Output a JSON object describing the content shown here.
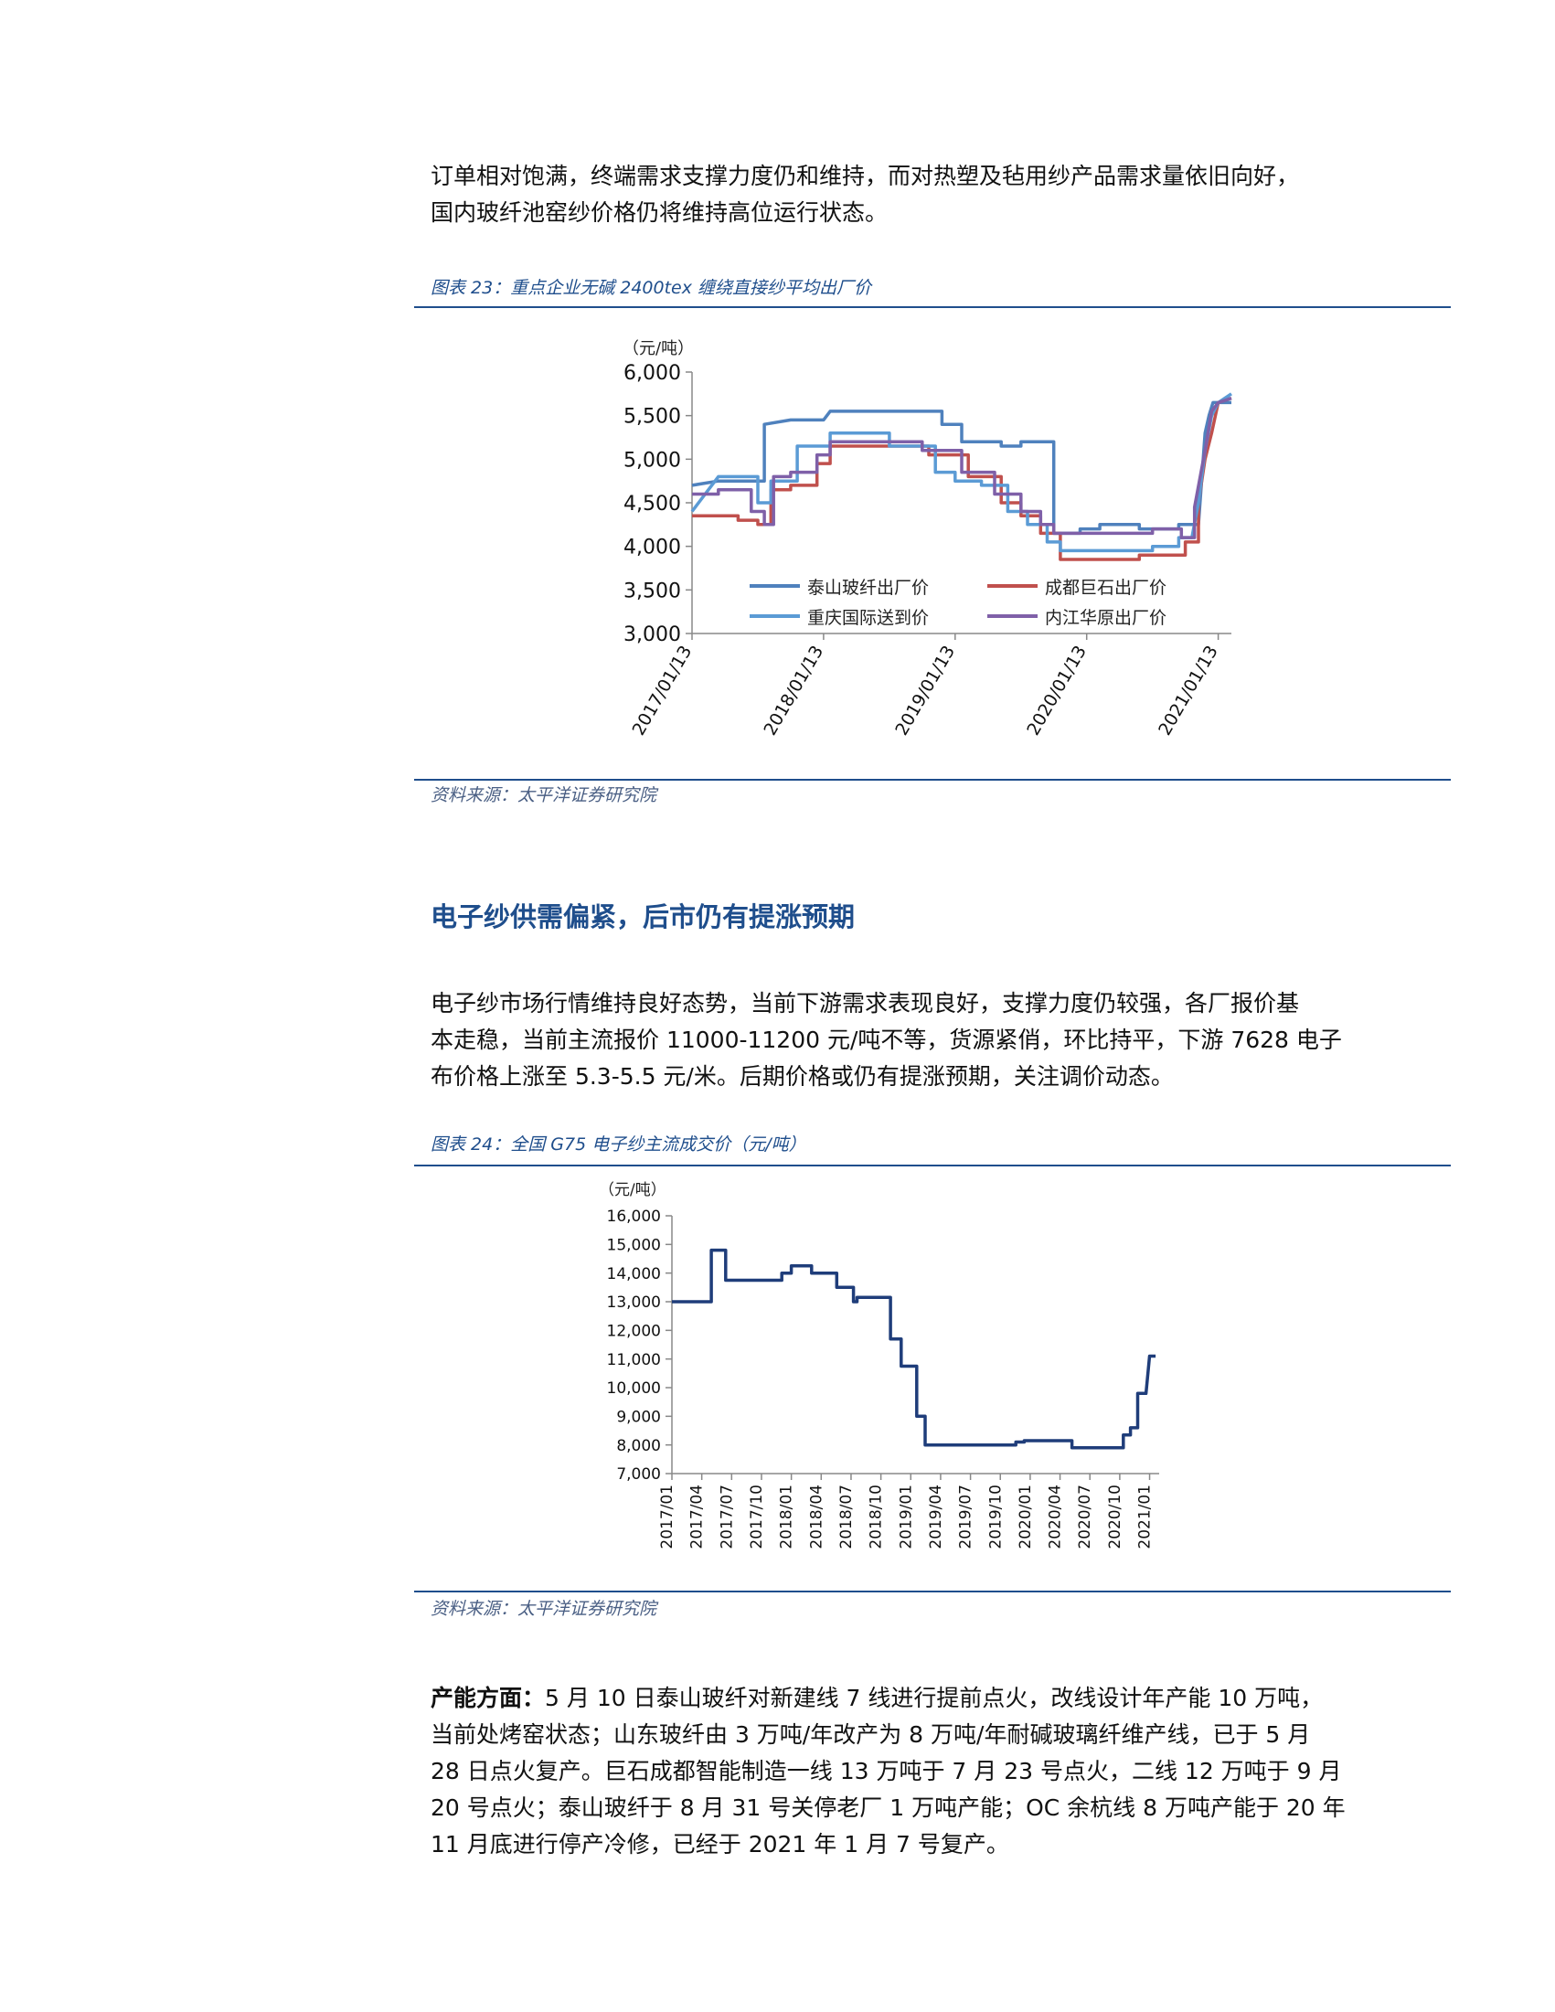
{
  "intro": {
    "lines": [
      "订单相对饱满，终端需求支撑力度仍和维持，而对热塑及毡用纱产品需求量依旧向好，",
      "国内玻纤池窑纱价格仍将维持高位运行状态。"
    ]
  },
  "figure1": {
    "caption": "图表 23：重点企业无碱 2400tex 缠绕直接纱平均出厂价",
    "source": "资料来源：太平洋证券研究院"
  },
  "section2": {
    "heading": "电子纱供需偏紧，后市仍有提涨预期",
    "lines": [
      "电子纱市场行情维持良好态势，当前下游需求表现良好，支撑力度仍较强，各厂报价基",
      "本走稳，当前主流报价 11000-11200 元/吨不等，货源紧俏，环比持平，下游 7628 电子",
      "布价格上涨至 5.3-5.5 元/米。后期价格或仍有提涨预期，关注调价动态。"
    ]
  },
  "figure2": {
    "caption": "图表 24：全国 G75 电子纱主流成交价（元/吨）",
    "source": "资料来源：太平洋证券研究院"
  },
  "section3": {
    "lead": "产能方面：",
    "first_line": "5 月 10 日泰山玻纤对新建线 7 线进行提前点火，改线设计年产能 10 万吨，",
    "lines": [
      "当前处烤窑状态；山东玻纤由 3 万吨/年改产为 8 万吨/年耐碱玻璃纤维产线，已于 5 月",
      "28 日点火复产。巨石成都智能制造一线 13 万吨于 7 月 23 号点火，二线 12 万吨于 9 月",
      "20 号点火；泰山玻纤于 8 月 31 号关停老厂 1 万吨产能；OC 余杭线 8 万吨产能于 20 年",
      "11 月底进行停产冷修，已经于 2021 年 1 月 7 号复产。"
    ]
  },
  "chart_data": [
    {
      "type": "line",
      "unit_label": "（元/吨）",
      "ylim": [
        3000,
        6000
      ],
      "yticks": [
        "3,000",
        "3,500",
        "4,000",
        "4,500",
        "5,000",
        "5,500",
        "6,000"
      ],
      "xlim": [
        2017.0,
        2021.1
      ],
      "xticks": [
        {
          "t": 2017.0,
          "label": "2017/01/13"
        },
        {
          "t": 2018.0,
          "label": "2018/01/13"
        },
        {
          "t": 2019.0,
          "label": "2019/01/13"
        },
        {
          "t": 2020.0,
          "label": "2020/01/13"
        },
        {
          "t": 2021.0,
          "label": "2021/01/13"
        }
      ],
      "legend": "inside-bottom",
      "series": [
        {
          "name": "泰山玻纤出厂价",
          "color": "#4f81bd",
          "points": [
            [
              2017.0,
              4700
            ],
            [
              2017.2,
              4750
            ],
            [
              2017.55,
              4750
            ],
            [
              2017.55,
              5400
            ],
            [
              2017.75,
              5450
            ],
            [
              2018.0,
              5450
            ],
            [
              2018.05,
              5550
            ],
            [
              2018.9,
              5550
            ],
            [
              2018.9,
              5400
            ],
            [
              2019.05,
              5400
            ],
            [
              2019.05,
              5200
            ],
            [
              2019.35,
              5200
            ],
            [
              2019.35,
              5150
            ],
            [
              2019.5,
              5150
            ],
            [
              2019.5,
              5200
            ],
            [
              2019.75,
              5200
            ],
            [
              2019.75,
              4150
            ],
            [
              2019.95,
              4150
            ],
            [
              2019.95,
              4200
            ],
            [
              2020.1,
              4200
            ],
            [
              2020.1,
              4250
            ],
            [
              2020.4,
              4250
            ],
            [
              2020.4,
              4200
            ],
            [
              2020.7,
              4200
            ],
            [
              2020.7,
              4250
            ],
            [
              2020.85,
              4250
            ],
            [
              2020.9,
              5300
            ],
            [
              2020.93,
              5500
            ],
            [
              2020.96,
              5650
            ],
            [
              2021.1,
              5650
            ]
          ]
        },
        {
          "name": "成都巨石出厂价",
          "color": "#c0504d",
          "points": [
            [
              2017.0,
              4350
            ],
            [
              2017.35,
              4350
            ],
            [
              2017.35,
              4300
            ],
            [
              2017.5,
              4300
            ],
            [
              2017.5,
              4250
            ],
            [
              2017.6,
              4250
            ],
            [
              2017.6,
              4650
            ],
            [
              2017.75,
              4650
            ],
            [
              2017.75,
              4700
            ],
            [
              2017.95,
              4700
            ],
            [
              2017.95,
              4950
            ],
            [
              2018.05,
              4950
            ],
            [
              2018.05,
              5150
            ],
            [
              2018.8,
              5150
            ],
            [
              2018.8,
              5050
            ],
            [
              2019.1,
              5050
            ],
            [
              2019.1,
              4800
            ],
            [
              2019.35,
              4800
            ],
            [
              2019.35,
              4500
            ],
            [
              2019.5,
              4500
            ],
            [
              2019.5,
              4350
            ],
            [
              2019.65,
              4350
            ],
            [
              2019.65,
              4150
            ],
            [
              2019.8,
              4150
            ],
            [
              2019.8,
              3850
            ],
            [
              2020.4,
              3850
            ],
            [
              2020.4,
              3900
            ],
            [
              2020.75,
              3900
            ],
            [
              2020.75,
              4050
            ],
            [
              2020.85,
              4050
            ],
            [
              2020.85,
              4500
            ],
            [
              2020.9,
              5000
            ],
            [
              2020.95,
              5300
            ],
            [
              2021.0,
              5650
            ],
            [
              2021.1,
              5700
            ]
          ]
        },
        {
          "name": "重庆国际送到价",
          "color": "#5b9bd5",
          "points": [
            [
              2017.0,
              4400
            ],
            [
              2017.15,
              4700
            ],
            [
              2017.2,
              4800
            ],
            [
              2017.5,
              4800
            ],
            [
              2017.5,
              4500
            ],
            [
              2017.6,
              4500
            ],
            [
              2017.6,
              4750
            ],
            [
              2017.8,
              4750
            ],
            [
              2017.8,
              5150
            ],
            [
              2018.05,
              5150
            ],
            [
              2018.05,
              5300
            ],
            [
              2018.5,
              5300
            ],
            [
              2018.5,
              5150
            ],
            [
              2018.85,
              5150
            ],
            [
              2018.85,
              4850
            ],
            [
              2019.0,
              4850
            ],
            [
              2019.0,
              4750
            ],
            [
              2019.2,
              4750
            ],
            [
              2019.2,
              4700
            ],
            [
              2019.4,
              4700
            ],
            [
              2019.4,
              4400
            ],
            [
              2019.55,
              4400
            ],
            [
              2019.55,
              4250
            ],
            [
              2019.7,
              4250
            ],
            [
              2019.7,
              4050
            ],
            [
              2019.8,
              4050
            ],
            [
              2019.8,
              3950
            ],
            [
              2020.5,
              3950
            ],
            [
              2020.5,
              4000
            ],
            [
              2020.7,
              4000
            ],
            [
              2020.7,
              4100
            ],
            [
              2020.8,
              4100
            ],
            [
              2020.85,
              4500
            ],
            [
              2020.9,
              5100
            ],
            [
              2020.95,
              5500
            ],
            [
              2021.0,
              5650
            ],
            [
              2021.1,
              5750
            ]
          ]
        },
        {
          "name": "内江华原出厂价",
          "color": "#7f60a8",
          "points": [
            [
              2017.0,
              4600
            ],
            [
              2017.2,
              4600
            ],
            [
              2017.2,
              4650
            ],
            [
              2017.45,
              4650
            ],
            [
              2017.45,
              4400
            ],
            [
              2017.55,
              4400
            ],
            [
              2017.55,
              4250
            ],
            [
              2017.62,
              4250
            ],
            [
              2017.62,
              4800
            ],
            [
              2017.75,
              4800
            ],
            [
              2017.75,
              4850
            ],
            [
              2017.95,
              4850
            ],
            [
              2017.95,
              5050
            ],
            [
              2018.05,
              5050
            ],
            [
              2018.05,
              5200
            ],
            [
              2018.75,
              5200
            ],
            [
              2018.75,
              5100
            ],
            [
              2019.05,
              5100
            ],
            [
              2019.05,
              4850
            ],
            [
              2019.3,
              4850
            ],
            [
              2019.3,
              4600
            ],
            [
              2019.5,
              4600
            ],
            [
              2019.5,
              4400
            ],
            [
              2019.65,
              4400
            ],
            [
              2019.65,
              4250
            ],
            [
              2019.75,
              4250
            ],
            [
              2019.75,
              4150
            ],
            [
              2020.5,
              4150
            ],
            [
              2020.5,
              4200
            ],
            [
              2020.72,
              4200
            ],
            [
              2020.72,
              4100
            ],
            [
              2020.82,
              4100
            ],
            [
              2020.82,
              4450
            ],
            [
              2020.9,
              5100
            ],
            [
              2020.95,
              5550
            ],
            [
              2021.0,
              5650
            ],
            [
              2021.1,
              5700
            ]
          ]
        }
      ]
    },
    {
      "type": "line",
      "unit_label": "（元/吨）",
      "ylim": [
        7000,
        16000
      ],
      "yticks": [
        "7,000",
        "8,000",
        "9,000",
        "10,000",
        "11,000",
        "12,000",
        "13,000",
        "14,000",
        "15,000",
        "16,000"
      ],
      "xlim": [
        2017.0,
        2021.08
      ],
      "xticks": [
        {
          "t": 2017.0,
          "label": "2017/01"
        },
        {
          "t": 2017.25,
          "label": "2017/04"
        },
        {
          "t": 2017.5,
          "label": "2017/07"
        },
        {
          "t": 2017.75,
          "label": "2017/10"
        },
        {
          "t": 2018.0,
          "label": "2018/01"
        },
        {
          "t": 2018.25,
          "label": "2018/04"
        },
        {
          "t": 2018.5,
          "label": "2018/07"
        },
        {
          "t": 2018.75,
          "label": "2018/10"
        },
        {
          "t": 2019.0,
          "label": "2019/01"
        },
        {
          "t": 2019.25,
          "label": "2019/04"
        },
        {
          "t": 2019.5,
          "label": "2019/07"
        },
        {
          "t": 2019.75,
          "label": "2019/10"
        },
        {
          "t": 2020.0,
          "label": "2020/01"
        },
        {
          "t": 2020.25,
          "label": "2020/04"
        },
        {
          "t": 2020.5,
          "label": "2020/07"
        },
        {
          "t": 2020.75,
          "label": "2020/10"
        },
        {
          "t": 2021.0,
          "label": "2021/01"
        }
      ],
      "series": [
        {
          "name": "",
          "color": "#1f3d7a",
          "points": [
            [
              2017.0,
              13000
            ],
            [
              2017.33,
              13000
            ],
            [
              2017.33,
              14800
            ],
            [
              2017.45,
              14800
            ],
            [
              2017.45,
              13750
            ],
            [
              2017.92,
              13750
            ],
            [
              2017.92,
              14000
            ],
            [
              2018.0,
              14000
            ],
            [
              2018.0,
              14250
            ],
            [
              2018.17,
              14250
            ],
            [
              2018.17,
              14000
            ],
            [
              2018.38,
              14000
            ],
            [
              2018.38,
              13500
            ],
            [
              2018.52,
              13500
            ],
            [
              2018.52,
              13000
            ],
            [
              2018.55,
              13000
            ],
            [
              2018.55,
              13150
            ],
            [
              2018.83,
              13150
            ],
            [
              2018.83,
              11700
            ],
            [
              2018.92,
              11700
            ],
            [
              2018.92,
              10750
            ],
            [
              2019.05,
              10750
            ],
            [
              2019.05,
              9000
            ],
            [
              2019.12,
              9000
            ],
            [
              2019.12,
              8000
            ],
            [
              2019.88,
              8000
            ],
            [
              2019.88,
              8100
            ],
            [
              2019.95,
              8100
            ],
            [
              2019.95,
              8150
            ],
            [
              2020.35,
              8150
            ],
            [
              2020.35,
              7900
            ],
            [
              2020.78,
              7900
            ],
            [
              2020.78,
              8350
            ],
            [
              2020.84,
              8350
            ],
            [
              2020.84,
              8600
            ],
            [
              2020.9,
              8600
            ],
            [
              2020.9,
              9800
            ],
            [
              2020.97,
              9800
            ],
            [
              2021.0,
              11100
            ],
            [
              2021.05,
              11100
            ]
          ]
        }
      ]
    }
  ]
}
